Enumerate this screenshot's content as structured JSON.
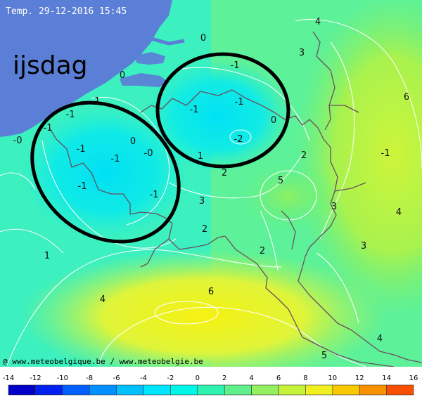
{
  "header": {
    "title": "Temp. 29-12-2016 15:45"
  },
  "annotation": {
    "label": "ijsdag"
  },
  "credit": {
    "text": "@ www.meteobelgique.be / www.meteobelgie.be"
  },
  "colors": {
    "sea": "#5b7fd6",
    "cold_core": "#00e8f2",
    "cool": "#22f0cf",
    "mild": "#7df76a",
    "warm": "#d6f53a",
    "hot": "#f4f20a",
    "isoline": "#ffffff",
    "border": "#6a4f5c",
    "ring": "#000000"
  },
  "legend": {
    "ticks": [
      "-14",
      "-12",
      "-10",
      "-8",
      "-6",
      "-4",
      "-2",
      "0",
      "2",
      "4",
      "6",
      "8",
      "10",
      "12",
      "14",
      "16"
    ],
    "swatches": [
      "#0000c8",
      "#0020f0",
      "#0060ff",
      "#0090ff",
      "#00c0ff",
      "#00e6ff",
      "#00f6e6",
      "#30f2b0",
      "#60f08a",
      "#94f060",
      "#c6f23a",
      "#f0f020",
      "#f8c800",
      "#f89000",
      "#f85000"
    ]
  },
  "isotherm_labels": [
    {
      "id": "l01",
      "text": "0"
    },
    {
      "id": "l02",
      "text": "4"
    },
    {
      "id": "l03",
      "text": "3"
    },
    {
      "id": "l04",
      "text": "-1"
    },
    {
      "id": "l05",
      "text": "0"
    },
    {
      "id": "l06",
      "text": "6"
    },
    {
      "id": "l07",
      "text": "-1"
    },
    {
      "id": "l08",
      "text": "-1"
    },
    {
      "id": "l09",
      "text": "-1"
    },
    {
      "id": "l10",
      "text": "-1"
    },
    {
      "id": "l11",
      "text": "0"
    },
    {
      "id": "l12",
      "text": "-2"
    },
    {
      "id": "l13",
      "text": "-1"
    },
    {
      "id": "l14",
      "text": "-0"
    },
    {
      "id": "l15",
      "text": "-1"
    },
    {
      "id": "l16",
      "text": "0"
    },
    {
      "id": "l17",
      "text": "-0"
    },
    {
      "id": "l18",
      "text": "-1"
    },
    {
      "id": "l19",
      "text": "1"
    },
    {
      "id": "l20",
      "text": "2"
    },
    {
      "id": "l21",
      "text": "2"
    },
    {
      "id": "l22",
      "text": "5"
    },
    {
      "id": "l23",
      "text": "-1"
    },
    {
      "id": "l24",
      "text": "-1"
    },
    {
      "id": "l25",
      "text": "3"
    },
    {
      "id": "l26",
      "text": "3"
    },
    {
      "id": "l27",
      "text": "4"
    },
    {
      "id": "l28",
      "text": "2"
    },
    {
      "id": "l29",
      "text": "3"
    },
    {
      "id": "l30",
      "text": "1"
    },
    {
      "id": "l31",
      "text": "2"
    },
    {
      "id": "l32",
      "text": "4"
    },
    {
      "id": "l33",
      "text": "6"
    },
    {
      "id": "l34",
      "text": "4"
    },
    {
      "id": "l35",
      "text": "5"
    },
    {
      "id": "l36",
      "text": "-1"
    }
  ]
}
